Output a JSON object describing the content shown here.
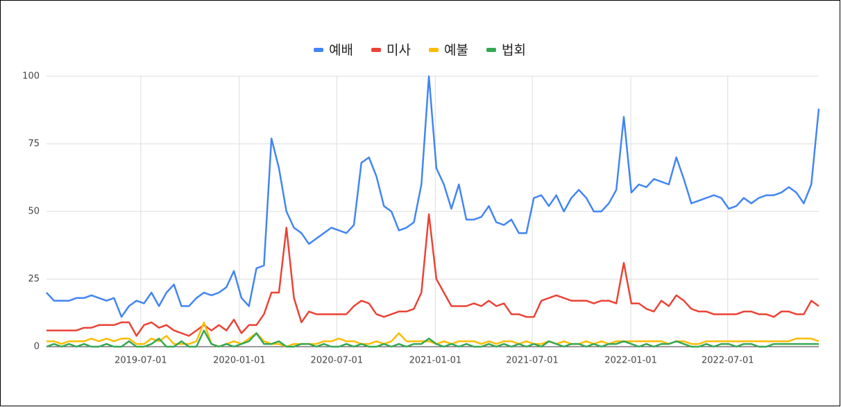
{
  "chart_data": {
    "type": "line",
    "x": [
      "2019-01-06",
      "2019-01-20",
      "2019-02-03",
      "2019-02-17",
      "2019-03-03",
      "2019-03-17",
      "2019-03-31",
      "2019-04-14",
      "2019-04-28",
      "2019-05-12",
      "2019-05-26",
      "2019-06-09",
      "2019-06-23",
      "2019-07-07",
      "2019-07-21",
      "2019-08-04",
      "2019-08-18",
      "2019-09-01",
      "2019-09-15",
      "2019-09-29",
      "2019-10-13",
      "2019-10-27",
      "2019-11-10",
      "2019-11-24",
      "2019-12-08",
      "2019-12-22",
      "2020-01-05",
      "2020-01-19",
      "2020-02-02",
      "2020-02-16",
      "2020-03-01",
      "2020-03-15",
      "2020-03-29",
      "2020-04-12",
      "2020-04-26",
      "2020-05-10",
      "2020-05-24",
      "2020-06-07",
      "2020-06-21",
      "2020-07-05",
      "2020-07-19",
      "2020-08-02",
      "2020-08-16",
      "2020-08-30",
      "2020-09-13",
      "2020-09-27",
      "2020-10-11",
      "2020-10-25",
      "2020-11-08",
      "2020-11-22",
      "2020-12-06",
      "2020-12-20",
      "2021-01-03",
      "2021-01-17",
      "2021-01-31",
      "2021-02-14",
      "2021-02-28",
      "2021-03-14",
      "2021-03-28",
      "2021-04-11",
      "2021-04-25",
      "2021-05-09",
      "2021-05-23",
      "2021-06-06",
      "2021-06-20",
      "2021-07-04",
      "2021-07-18",
      "2021-08-01",
      "2021-08-15",
      "2021-08-29",
      "2021-09-12",
      "2021-09-26",
      "2021-10-10",
      "2021-10-24",
      "2021-11-07",
      "2021-11-21",
      "2021-12-05",
      "2021-12-19",
      "2022-01-02",
      "2022-01-16",
      "2022-01-30",
      "2022-02-13",
      "2022-02-27",
      "2022-03-13",
      "2022-03-27",
      "2022-04-10",
      "2022-04-24",
      "2022-05-08",
      "2022-05-22",
      "2022-06-05",
      "2022-06-19",
      "2022-07-03",
      "2022-07-17",
      "2022-07-31",
      "2022-08-14",
      "2022-08-28",
      "2022-09-11",
      "2022-09-25",
      "2022-10-09",
      "2022-10-23",
      "2022-11-06",
      "2022-11-20",
      "2022-12-04",
      "2022-12-18"
    ],
    "series": [
      {
        "name": "예배",
        "color": "#4285f4",
        "values": [
          20,
          17,
          17,
          17,
          18,
          18,
          19,
          18,
          17,
          18,
          11,
          15,
          17,
          16,
          20,
          15,
          20,
          23,
          15,
          15,
          18,
          20,
          19,
          20,
          22,
          28,
          18,
          15,
          29,
          30,
          77,
          66,
          50,
          44,
          42,
          38,
          40,
          42,
          44,
          43,
          42,
          45,
          68,
          70,
          63,
          52,
          50,
          43,
          44,
          46,
          60,
          100,
          66,
          60,
          51,
          60,
          47,
          47,
          48,
          52,
          46,
          45,
          47,
          42,
          42,
          55,
          56,
          52,
          56,
          50,
          55,
          58,
          55,
          50,
          50,
          53,
          58,
          85,
          57,
          60,
          59,
          62,
          61,
          60,
          70,
          62,
          53,
          54,
          55,
          56,
          55,
          51,
          52,
          55,
          53,
          55,
          56,
          56,
          57,
          59,
          57,
          53,
          60,
          88
        ]
      },
      {
        "name": "미사",
        "color": "#ea4335",
        "values": [
          6,
          6,
          6,
          6,
          6,
          7,
          7,
          8,
          8,
          8,
          9,
          9,
          4,
          8,
          9,
          7,
          8,
          6,
          5,
          4,
          6,
          8,
          6,
          8,
          6,
          10,
          5,
          8,
          8,
          12,
          20,
          20,
          44,
          18,
          9,
          13,
          12,
          12,
          12,
          12,
          12,
          15,
          17,
          16,
          12,
          11,
          12,
          13,
          13,
          14,
          20,
          49,
          25,
          20,
          15,
          15,
          15,
          16,
          15,
          17,
          15,
          16,
          12,
          12,
          11,
          11,
          17,
          18,
          19,
          18,
          17,
          17,
          17,
          16,
          17,
          17,
          16,
          31,
          16,
          16,
          14,
          13,
          17,
          15,
          19,
          17,
          14,
          13,
          13,
          12,
          12,
          12,
          12,
          13,
          13,
          12,
          12,
          11,
          13,
          13,
          12,
          12,
          17,
          15
        ]
      },
      {
        "name": "예불",
        "color": "#fbbc04",
        "values": [
          2,
          2,
          1,
          2,
          2,
          2,
          3,
          2,
          3,
          2,
          3,
          3,
          1,
          1,
          3,
          2,
          4,
          1,
          1,
          1,
          2,
          9,
          1,
          0,
          1,
          2,
          1,
          3,
          5,
          2,
          1,
          1,
          0,
          1,
          1,
          1,
          1,
          2,
          2,
          3,
          2,
          2,
          1,
          1,
          2,
          1,
          2,
          5,
          2,
          2,
          2,
          2,
          1,
          2,
          1,
          2,
          2,
          2,
          1,
          2,
          1,
          2,
          2,
          1,
          2,
          1,
          1,
          2,
          1,
          2,
          1,
          1,
          2,
          1,
          2,
          1,
          2,
          2,
          2,
          2,
          2,
          2,
          2,
          1,
          2,
          2,
          1,
          1,
          2,
          2,
          2,
          2,
          2,
          2,
          2,
          2,
          2,
          2,
          2,
          2,
          3,
          3,
          3,
          2
        ]
      },
      {
        "name": "법회",
        "color": "#34a853",
        "values": [
          0,
          1,
          0,
          1,
          0,
          1,
          0,
          0,
          1,
          0,
          0,
          2,
          0,
          0,
          1,
          3,
          0,
          0,
          2,
          0,
          0,
          6,
          1,
          0,
          1,
          0,
          1,
          2,
          5,
          1,
          1,
          2,
          0,
          0,
          1,
          1,
          0,
          1,
          0,
          0,
          1,
          0,
          1,
          0,
          0,
          1,
          0,
          1,
          0,
          1,
          1,
          3,
          1,
          0,
          1,
          0,
          1,
          0,
          0,
          1,
          0,
          1,
          0,
          1,
          0,
          1,
          0,
          2,
          1,
          0,
          1,
          1,
          0,
          1,
          0,
          1,
          1,
          2,
          1,
          0,
          1,
          0,
          1,
          1,
          2,
          1,
          0,
          0,
          1,
          0,
          1,
          1,
          0,
          1,
          1,
          0,
          0,
          1,
          1,
          1,
          1,
          1,
          1,
          1
        ]
      }
    ],
    "xlim": [
      "2019-01-06",
      "2022-12-18"
    ],
    "xticks": [
      "2019-07-01",
      "2020-01-01",
      "2020-07-01",
      "2021-01-01",
      "2021-07-01",
      "2022-01-01",
      "2022-07-01"
    ],
    "ylim": [
      0,
      100
    ],
    "yticks": [
      0,
      25,
      50,
      75,
      100
    ],
    "grid": true,
    "legend": "top"
  }
}
